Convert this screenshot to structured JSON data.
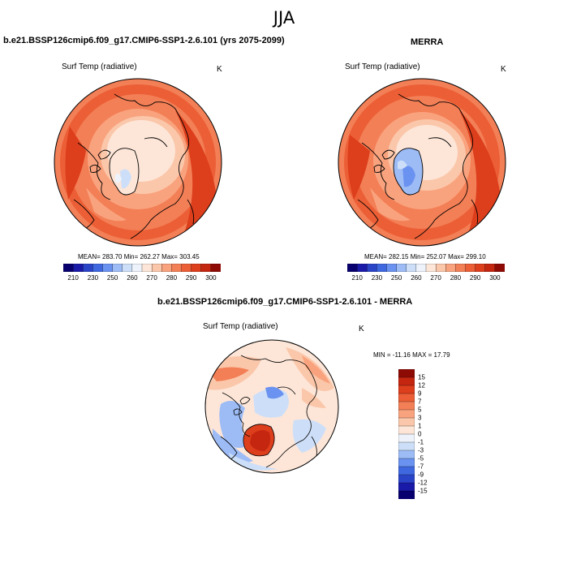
{
  "main_title": "JJA",
  "panels": [
    {
      "title": "b.e21.BSSP126cmip6.f09_g17.CMIP6-SSP1-2.6.101 (yrs 2075-2099)",
      "variable": "Surf Temp (radiative)",
      "units": "K",
      "stats": "MEAN= 283.70  Min= 262.27  Max= 303.45"
    },
    {
      "title": "MERRA",
      "variable": "Surf Temp (radiative)",
      "units": "K",
      "stats": "MEAN= 282.15  Min= 252.07  Max= 299.10"
    },
    {
      "title": "b.e21.BSSP126cmip6.f09_g17.CMIP6-SSP1-2.6.101 - MERRA",
      "variable": "Surf Temp (radiative)",
      "units": "K",
      "stats": "MIN = -11.16 MAX =  17.79"
    }
  ],
  "abs_colorbar": {
    "labels": [
      "210",
      "230",
      "250",
      "260",
      "270",
      "280",
      "290",
      "300"
    ],
    "colors": [
      "#08006e",
      "#1a1aa8",
      "#2a44c8",
      "#3f68e0",
      "#6a92f0",
      "#9dbcf6",
      "#cddff8",
      "#eef3fb",
      "#fde6d8",
      "#fbc7aa",
      "#f9a37e",
      "#f37f56",
      "#ec5f36",
      "#dd3e1c",
      "#c42610",
      "#8e0b05"
    ]
  },
  "diff_colorbar": {
    "labels": [
      "15",
      "12",
      "9",
      "7",
      "5",
      "3",
      "1",
      "0",
      "-1",
      "-3",
      "-5",
      "-7",
      "-9",
      "-12",
      "-15"
    ],
    "colors": [
      "#8e0b05",
      "#c42610",
      "#dd3e1c",
      "#ec5f36",
      "#f37f56",
      "#f9a37e",
      "#fbc7aa",
      "#fde6d8",
      "#eef3fb",
      "#cddff8",
      "#9dbcf6",
      "#6a92f0",
      "#3f68e0",
      "#2a44c8",
      "#1a1aa8",
      "#08006e"
    ]
  }
}
